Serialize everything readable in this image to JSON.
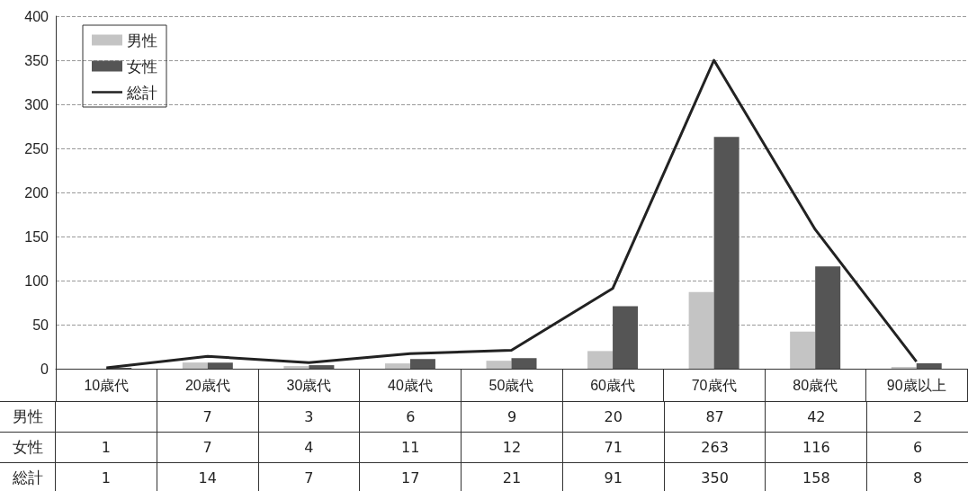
{
  "chart_data": {
    "type": "bar",
    "categories": [
      "10歳代",
      "20歳代",
      "30歳代",
      "40歳代",
      "50歳代",
      "60歳代",
      "70歳代",
      "80歳代",
      "90歳以上"
    ],
    "series": [
      {
        "name": "男性",
        "color": "#c4c4c4",
        "values": [
          null,
          7,
          3,
          6,
          9,
          20,
          87,
          42,
          2
        ]
      },
      {
        "name": "女性",
        "color": "#555555",
        "values": [
          1,
          7,
          4,
          11,
          12,
          71,
          263,
          116,
          6
        ]
      },
      {
        "name": "総計",
        "type": "line",
        "color": "#222222",
        "values": [
          1,
          14,
          7,
          17,
          21,
          91,
          350,
          158,
          8
        ]
      }
    ],
    "ylim": [
      0,
      400
    ],
    "yticks": [
      0,
      50,
      100,
      150,
      200,
      250,
      300,
      350,
      400
    ],
    "grid": "y",
    "legend": "top left",
    "marker": "none",
    "line_style": "solid",
    "data_labels": true
  }
}
